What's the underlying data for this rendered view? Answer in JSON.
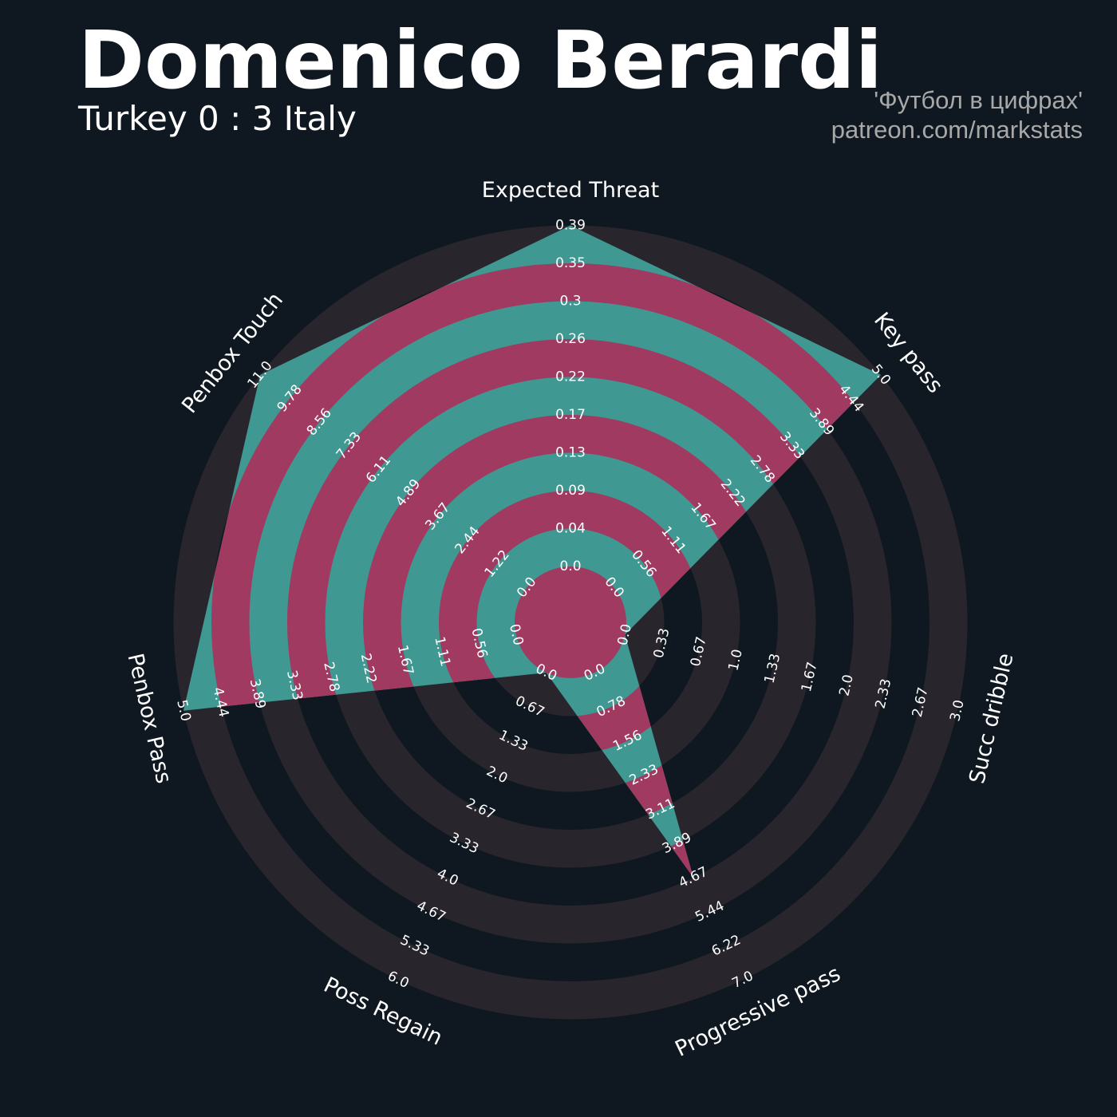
{
  "header": {
    "title": "Domenico Berardi",
    "subtitle": "Turkey 0 : 3 Italy",
    "credit_name": "'Футбол в цифрах'",
    "credit_url": "patreon.com/markstats"
  },
  "colors": {
    "background": "#0f1820",
    "ring_band": "#28252c",
    "shape_band_a": "#3f9891",
    "shape_band_b": "#a03a60",
    "text": "#ffffff",
    "credit": "#a8a8a8"
  },
  "chart_data": {
    "type": "radar",
    "rings": 9,
    "params": [
      {
        "name": "Expected Threat",
        "min": 0.0,
        "max": 0.39,
        "value": 0.39,
        "ticks": [
          "0.0",
          "0.04",
          "0.09",
          "0.13",
          "0.17",
          "0.22",
          "0.26",
          "0.3",
          "0.35",
          "0.39"
        ]
      },
      {
        "name": "Key pass",
        "min": 0.0,
        "max": 5.0,
        "value": 5.0,
        "ticks": [
          "0.0",
          "0.56",
          "1.11",
          "1.67",
          "2.22",
          "2.78",
          "3.33",
          "3.89",
          "4.44",
          "5.0"
        ]
      },
      {
        "name": "Succ dribble",
        "min": 0.0,
        "max": 3.0,
        "value": 0.0,
        "ticks": [
          "0.0",
          "0.33",
          "0.67",
          "1.0",
          "1.33",
          "1.67",
          "2.0",
          "2.33",
          "2.67",
          "3.0"
        ]
      },
      {
        "name": "Progressive pass",
        "min": 0.0,
        "max": 7.0,
        "value": 4.67,
        "ticks": [
          "0.0",
          "0.78",
          "1.56",
          "2.33",
          "3.11",
          "3.89",
          "4.67",
          "5.44",
          "6.22",
          "7.0"
        ]
      },
      {
        "name": "Poss Regain",
        "min": 0.0,
        "max": 6.0,
        "value": 0.0,
        "ticks": [
          "0.0",
          "0.67",
          "1.33",
          "2.0",
          "2.67",
          "3.33",
          "4.0",
          "4.67",
          "5.33",
          "6.0"
        ]
      },
      {
        "name": "Penbox Pass",
        "min": 0.0,
        "max": 5.0,
        "value": 5.0,
        "ticks": [
          "0.0",
          "0.56",
          "1.11",
          "1.67",
          "2.22",
          "2.78",
          "3.33",
          "3.89",
          "4.44",
          "5.0"
        ]
      },
      {
        "name": "Penbox Touch",
        "min": 0.0,
        "max": 11.0,
        "value": 11.0,
        "ticks": [
          "0.0",
          "1.22",
          "2.44",
          "3.67",
          "4.89",
          "6.11",
          "7.33",
          "8.56",
          "9.78",
          "11.0"
        ]
      }
    ]
  }
}
